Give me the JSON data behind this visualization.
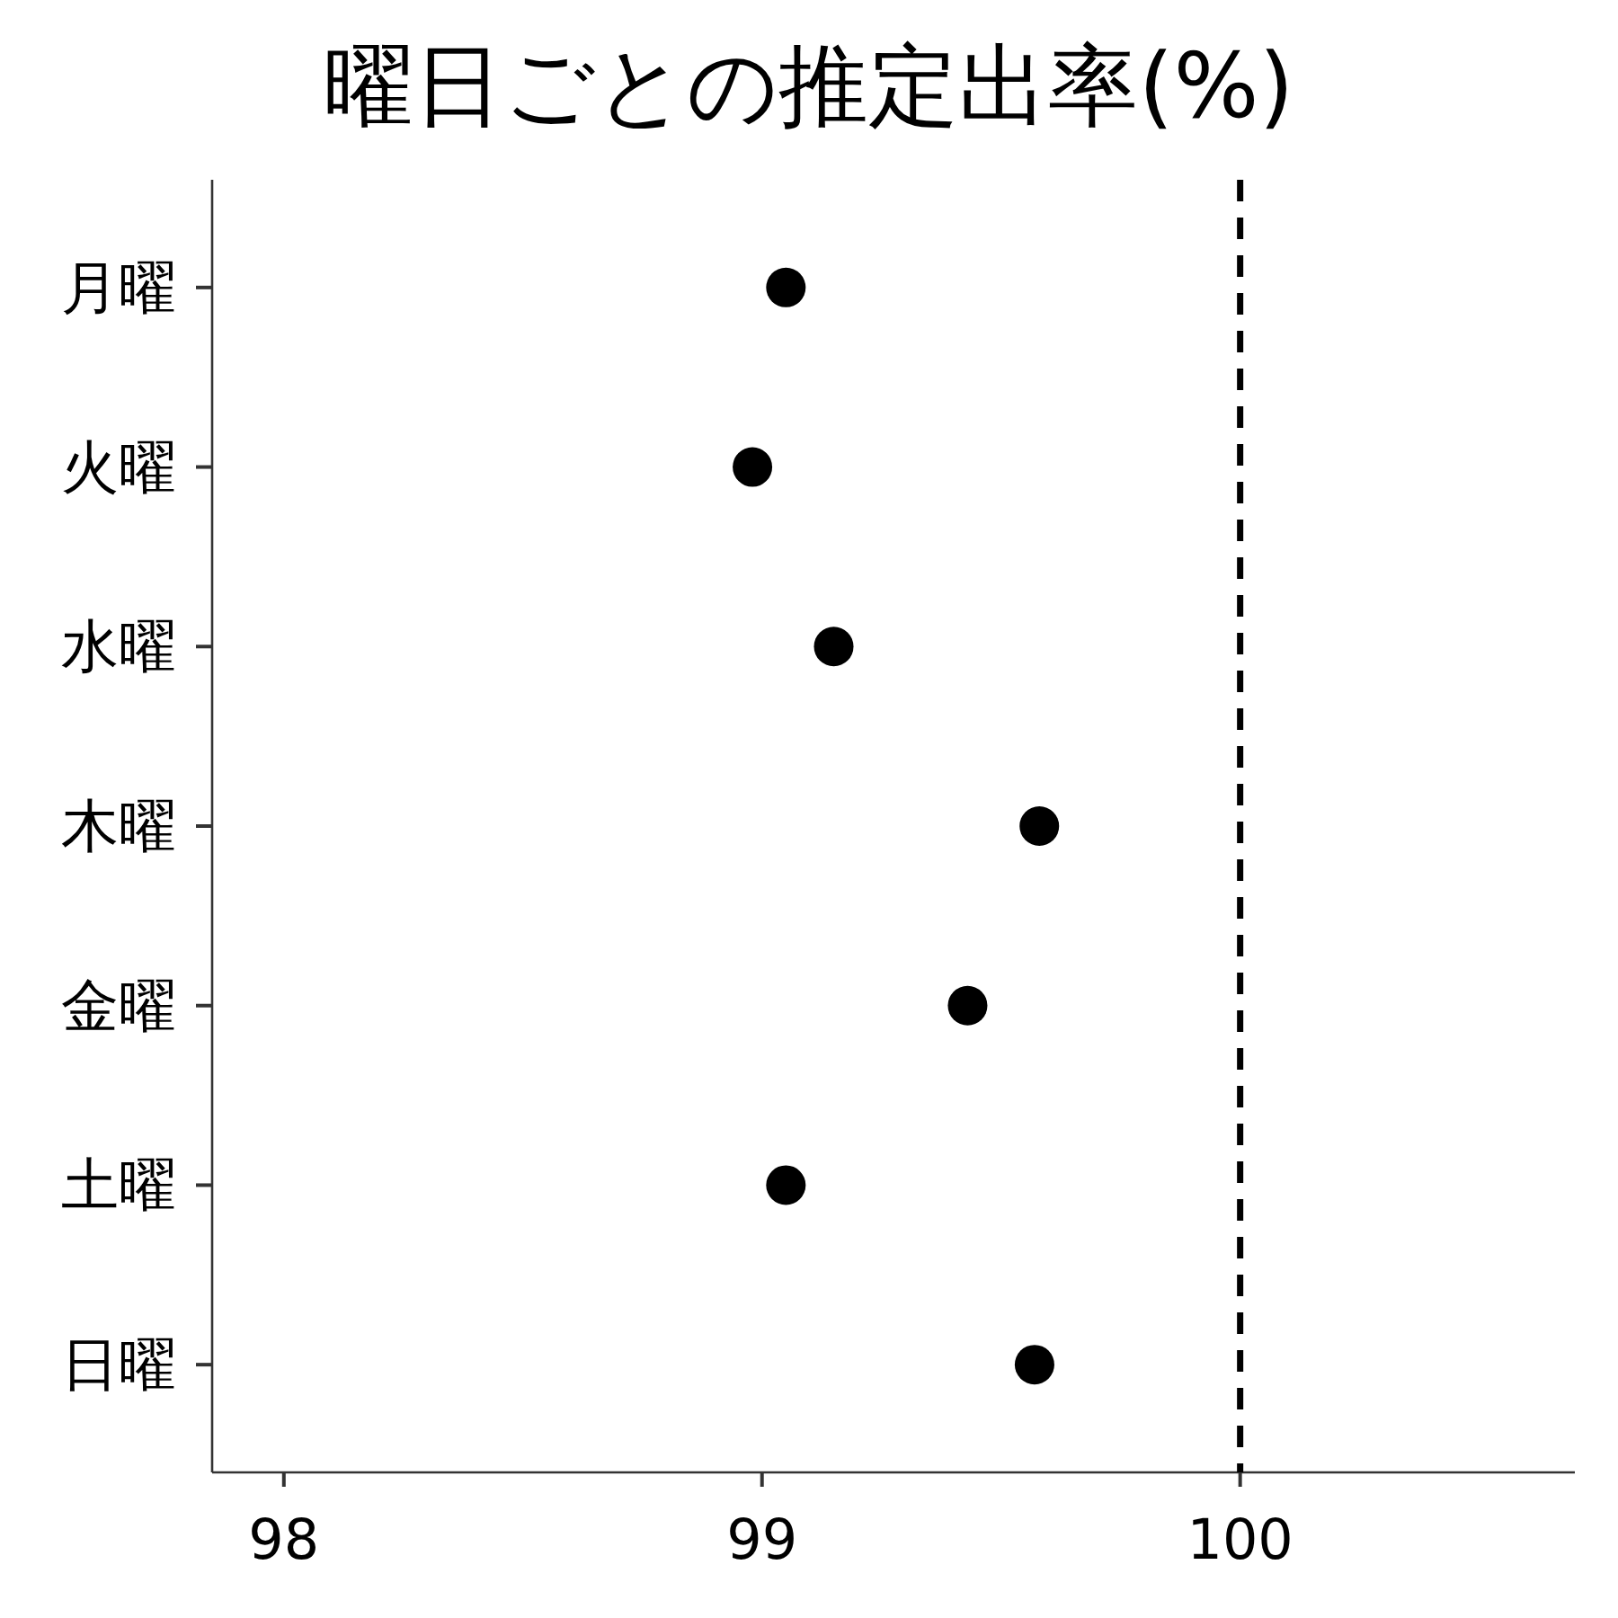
{
  "chart_data": {
    "type": "scatter",
    "title": "曜日ごとの推定出率(%)",
    "orientation": "horizontal",
    "categories": [
      "月曜",
      "火曜",
      "水曜",
      "木曜",
      "金曜",
      "土曜",
      "日曜"
    ],
    "values": [
      99.05,
      98.98,
      99.15,
      99.58,
      99.43,
      99.05,
      99.57
    ],
    "color": "#000000",
    "marker": "circle",
    "xlim": [
      97.85,
      100.7
    ],
    "xticks": [
      98,
      99,
      100
    ],
    "ref_lines": [
      {
        "axis": "x",
        "value": 100,
        "color": "#000000",
        "line_style": "dashed"
      }
    ],
    "grid": false
  }
}
